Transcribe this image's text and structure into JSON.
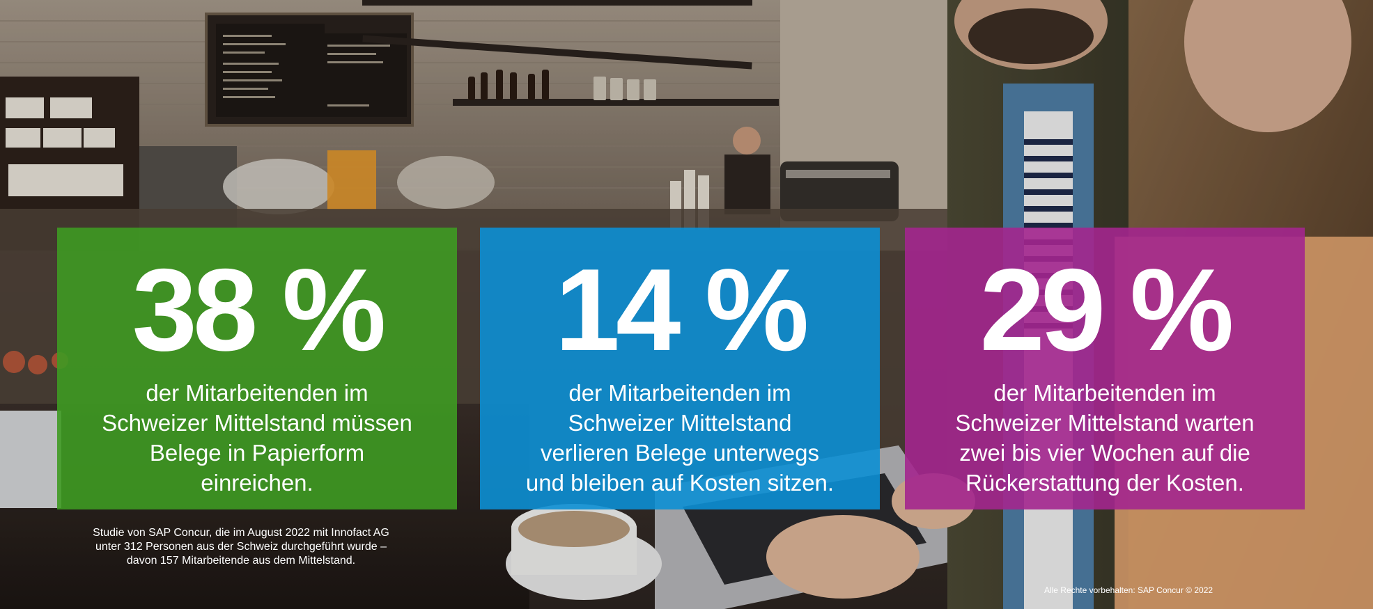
{
  "colors": {
    "green": "#3e9a22",
    "blue": "#0c8fd4",
    "magenta": "#a3268e"
  },
  "background": {
    "scene": "cafe-photo"
  },
  "stats": [
    {
      "value": "38 %",
      "description": "der Mitarbeitenden im\nSchweizer Mittelstand müssen\nBelege in Papierform\neinreichen."
    },
    {
      "value": "14 %",
      "description": "der Mitarbeitenden im\nSchweizer Mittelstand\nverlieren Belege unterwegs\nund bleiben auf Kosten sitzen."
    },
    {
      "value": "29 %",
      "description": "der Mitarbeitenden im\nSchweizer Mittelstand warten\nzwei bis vier Wochen auf die\nRückerstattung der Kosten."
    }
  ],
  "footnote": "Studie von SAP Concur, die im August 2022 mit Innofact AG\nunter 312 Personen aus der Schweiz durchgeführt wurde –\ndavon 157 Mitarbeitende aus dem Mittelstand.",
  "copyright": "Alle Rechte vorbehalten: SAP Concur © 2022"
}
